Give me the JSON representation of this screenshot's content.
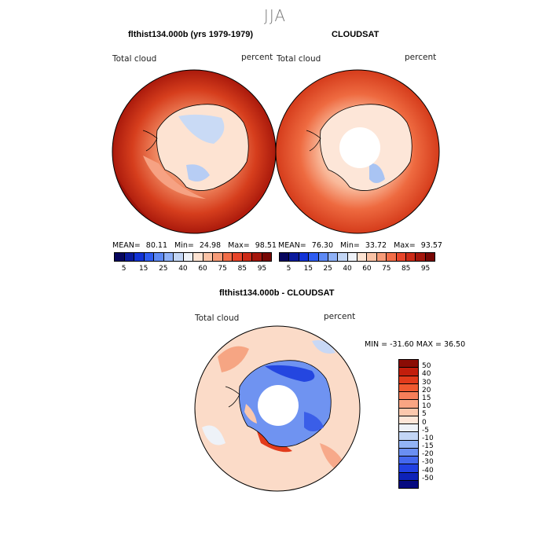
{
  "season": "JJA",
  "panel1": {
    "title": "flthist134.000b (yrs 1979-1979)",
    "variable": "Total cloud",
    "units": "percent",
    "mean_label": "MEAN=",
    "mean": "80.11",
    "min_label": "Min=",
    "min": "24.98",
    "max_label": "Max=",
    "max": "98.51"
  },
  "panel2": {
    "title": "CLOUDSAT",
    "variable": "Total cloud",
    "units": "percent",
    "mean_label": "MEAN=",
    "mean": "76.30",
    "min_label": "Min=",
    "min": "33.72",
    "max_label": "Max=",
    "max": "93.57"
  },
  "panel3": {
    "title": "flthist134.000b - CLOUDSAT",
    "variable": "Total cloud",
    "units": "percent",
    "range_text": "MIN = -31.60 MAX =  36.50"
  },
  "colorbar_abs": {
    "ticks": [
      "5",
      "15",
      "25",
      "40",
      "60",
      "75",
      "85",
      "95"
    ],
    "colors": [
      "#07065e",
      "#0a1a9c",
      "#1233d6",
      "#2e5cf2",
      "#5d89f5",
      "#8fb1f7",
      "#c3d6f5",
      "#eef2f8",
      "#fde3d2",
      "#fbc3a6",
      "#f79b78",
      "#f26d48",
      "#e8452a",
      "#cc2a17",
      "#a5160c",
      "#770704"
    ]
  },
  "colorbar_diff": {
    "ticks": [
      "50",
      "40",
      "30",
      "20",
      "15",
      "10",
      "5",
      "0",
      "-5",
      "-10",
      "-15",
      "-20",
      "-30",
      "-40",
      "-50"
    ],
    "colors": [
      "#8a0c05",
      "#c21e0c",
      "#e23b1b",
      "#f05a30",
      "#f57f59",
      "#f9a583",
      "#fcc8ad",
      "#fde6d8",
      "#eef2f8",
      "#c3d6f5",
      "#93b4f6",
      "#6a8ff2",
      "#4468ee",
      "#2241e2",
      "#0d22b8",
      "#060a80"
    ]
  },
  "maps": {
    "model": {
      "ocean": "#d23e1c",
      "land": "#fbe0cf",
      "polar_hole": false
    },
    "cloudsat": {
      "ocean": "#e24e24",
      "land": "#fddccb",
      "polar_hole": true
    },
    "diff": {
      "ocean": "#fbd9c5",
      "land": "#5a82ee",
      "polar_hole": true
    }
  }
}
